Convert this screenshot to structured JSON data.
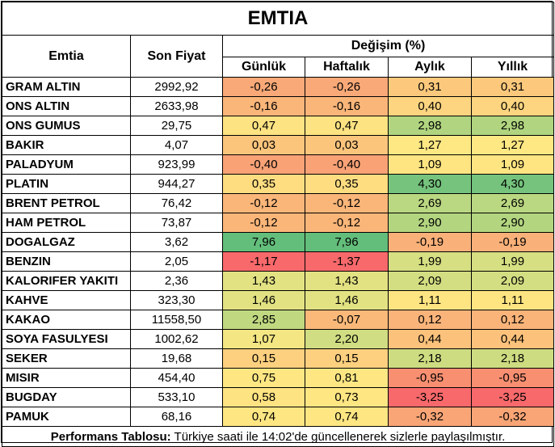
{
  "title": "EMTIA",
  "headers": {
    "emtia": "Emtia",
    "son_fiyat": "Son Fiyat",
    "degisim": "Değişim (%)",
    "gunluk": "Günlük",
    "haftalik": "Haftalık",
    "aylik": "Aylık",
    "yillik": "Yıllık"
  },
  "rows": [
    {
      "name": "GRAM ALTIN",
      "price": "2992,92",
      "gunluk": "-0,26",
      "haftalik": "-0,26",
      "aylik": "0,31",
      "yillik": "0,31",
      "colors": [
        "#f8a977",
        "#f8a977",
        "#fcc97c",
        "#fcc97c"
      ]
    },
    {
      "name": "ONS ALTIN",
      "price": "2633,98",
      "gunluk": "-0,16",
      "haftalik": "-0,16",
      "aylik": "0,40",
      "yillik": "0,40",
      "colors": [
        "#fab579",
        "#fab579",
        "#fdd47f",
        "#fdd47f"
      ]
    },
    {
      "name": "ONS GUMUS",
      "price": "29,75",
      "gunluk": "0,47",
      "haftalik": "0,47",
      "aylik": "2,98",
      "yillik": "2,98",
      "colors": [
        "#fee382",
        "#fee382",
        "#b0d47f",
        "#b0d47f"
      ]
    },
    {
      "name": "BAKIR",
      "price": "4,07",
      "gunluk": "0,03",
      "haftalik": "0,03",
      "aylik": "1,27",
      "yillik": "1,27",
      "colors": [
        "#fcc57c",
        "#fcc57c",
        "#fde883",
        "#fde883"
      ]
    },
    {
      "name": "PALADYUM",
      "price": "923,99",
      "gunluk": "-0,40",
      "haftalik": "-0,40",
      "aylik": "1,09",
      "yillik": "1,09",
      "colors": [
        "#f8a276",
        "#f8a276",
        "#fee582",
        "#fee582"
      ]
    },
    {
      "name": "PLATIN",
      "price": "944,27",
      "gunluk": "0,35",
      "haftalik": "0,35",
      "aylik": "4,30",
      "yillik": "4,30",
      "colors": [
        "#fedd81",
        "#fedd81",
        "#75c37d",
        "#75c37d"
      ]
    },
    {
      "name": "BRENT PETROL",
      "price": "76,42",
      "gunluk": "-0,12",
      "haftalik": "-0,12",
      "aylik": "2,69",
      "yillik": "2,69",
      "colors": [
        "#fab679",
        "#fab679",
        "#bad781",
        "#bad781"
      ]
    },
    {
      "name": "HAM PETROL",
      "price": "73,87",
      "gunluk": "-0,12",
      "haftalik": "-0,12",
      "aylik": "2,90",
      "yillik": "2,90",
      "colors": [
        "#fab679",
        "#fab679",
        "#b3d580",
        "#b3d580"
      ]
    },
    {
      "name": "DOGALGAZ",
      "price": "3,62",
      "gunluk": "7,96",
      "haftalik": "7,96",
      "aylik": "-0,19",
      "yillik": "-0,19",
      "colors": [
        "#63be7b",
        "#63be7b",
        "#f9b179",
        "#f9b179"
      ]
    },
    {
      "name": "BENZIN",
      "price": "2,05",
      "gunluk": "-1,17",
      "haftalik": "-1,37",
      "aylik": "1,99",
      "yillik": "1,99",
      "colors": [
        "#f8696b",
        "#f8696b",
        "#d6df82",
        "#d6df82"
      ]
    },
    {
      "name": "KALORIFER YAKITI",
      "price": "2,36",
      "gunluk": "1,43",
      "haftalik": "1,43",
      "aylik": "2,09",
      "yillik": "2,09",
      "colors": [
        "#e3e283",
        "#e3e283",
        "#d3de82",
        "#d3de82"
      ]
    },
    {
      "name": "KAHVE",
      "price": "323,30",
      "gunluk": "1,46",
      "haftalik": "1,46",
      "aylik": "1,11",
      "yillik": "1,11",
      "colors": [
        "#e2e283",
        "#e2e283",
        "#fee582",
        "#fee582"
      ]
    },
    {
      "name": "KAKAO",
      "price": "11558,50",
      "gunluk": "2,85",
      "haftalik": "-0,07",
      "aylik": "0,12",
      "yillik": "0,12",
      "colors": [
        "#c0d981",
        "#fab979",
        "#fab47a",
        "#fab47a"
      ]
    },
    {
      "name": "SOYA FASULYESI",
      "price": "1002,62",
      "gunluk": "1,07",
      "haftalik": "2,20",
      "aylik": "0,44",
      "yillik": "0,44",
      "colors": [
        "#f3e683",
        "#d0dd82",
        "#fcc27b",
        "#fcc27b"
      ]
    },
    {
      "name": "SEKER",
      "price": "19,68",
      "gunluk": "0,15",
      "haftalik": "0,15",
      "aylik": "2,18",
      "yillik": "2,18",
      "colors": [
        "#fdd07f",
        "#fdd07f",
        "#cedc81",
        "#cedc81"
      ]
    },
    {
      "name": "MISIR",
      "price": "454,40",
      "gunluk": "0,75",
      "haftalik": "0,81",
      "aylik": "-0,95",
      "yillik": "-0,95",
      "colors": [
        "#fee783",
        "#fee783",
        "#f88f71",
        "#f88f71"
      ]
    },
    {
      "name": "BUGDAY",
      "price": "533,10",
      "gunluk": "0,58",
      "haftalik": "0,73",
      "aylik": "-3,25",
      "yillik": "-3,25",
      "colors": [
        "#fee382",
        "#fee683",
        "#f8696b",
        "#f8696b"
      ]
    },
    {
      "name": "PAMUK",
      "price": "68,16",
      "gunluk": "0,74",
      "haftalik": "0,74",
      "aylik": "-0,32",
      "yillik": "-0,32",
      "colors": [
        "#fee683",
        "#fee683",
        "#f9a576",
        "#f9a576"
      ]
    }
  ],
  "footer": {
    "bold": "Performans Tablosu:",
    "text": " Türkiye saati ile 14:02'de güncellenerek sizlerle paylaşılmıştır."
  }
}
